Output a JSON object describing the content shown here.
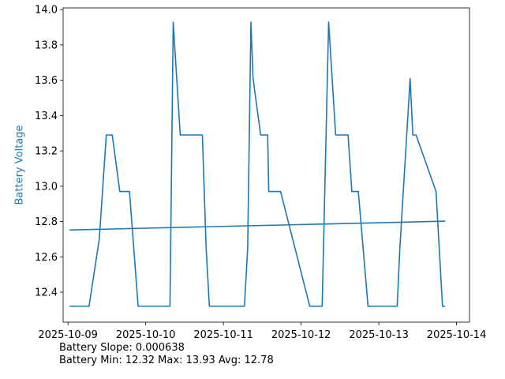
{
  "chart_data": {
    "type": "line",
    "xlabel": "",
    "ylabel": "Battery Voltage",
    "ylabel_color": "#1f77b4",
    "series_color": "#1f77b4",
    "grid": false,
    "xlim": [
      "2025-10-08T22:30",
      "2025-10-14T04:00"
    ],
    "ylim": [
      12.23,
      14.01
    ],
    "x_ticks": [
      {
        "value": "2025-10-09T00:00",
        "label": "2025-10-09"
      },
      {
        "value": "2025-10-10T00:00",
        "label": "2025-10-10"
      },
      {
        "value": "2025-10-11T00:00",
        "label": "2025-10-11"
      },
      {
        "value": "2025-10-12T00:00",
        "label": "2025-10-12"
      },
      {
        "value": "2025-10-13T00:00",
        "label": "2025-10-13"
      },
      {
        "value": "2025-10-14T00:00",
        "label": "2025-10-14"
      }
    ],
    "y_ticks": [
      {
        "value": 12.4,
        "label": "12.4"
      },
      {
        "value": 12.6,
        "label": "12.6"
      },
      {
        "value": 12.8,
        "label": "12.8"
      },
      {
        "value": 13.0,
        "label": "13.0"
      },
      {
        "value": 13.2,
        "label": "13.2"
      },
      {
        "value": 13.4,
        "label": "13.4"
      },
      {
        "value": 13.6,
        "label": "13.6"
      },
      {
        "value": 13.8,
        "label": "13.8"
      },
      {
        "value": 14.0,
        "label": "14.0"
      }
    ],
    "series": [
      {
        "x": [
          "2025-10-09T00:30",
          "2025-10-09T06:30",
          "2025-10-09T09:40",
          "2025-10-09T11:50",
          "2025-10-09T13:40",
          "2025-10-09T16:00",
          "2025-10-09T19:00",
          "2025-10-09T21:40",
          "2025-10-10T07:30",
          "2025-10-10T08:30",
          "2025-10-10T10:40",
          "2025-10-10T17:30",
          "2025-10-10T18:40",
          "2025-10-10T19:40",
          "2025-10-11T06:30",
          "2025-10-11T07:30",
          "2025-10-11T08:30",
          "2025-10-11T09:10",
          "2025-10-11T11:30",
          "2025-10-11T13:40",
          "2025-10-11T14:00",
          "2025-10-11T17:40",
          "2025-10-12T02:40",
          "2025-10-12T06:30",
          "2025-10-12T08:30",
          "2025-10-12T10:40",
          "2025-10-12T14:30",
          "2025-10-12T15:40",
          "2025-10-12T17:40",
          "2025-10-12T20:40",
          "2025-10-13T05:40",
          "2025-10-13T06:30",
          "2025-10-13T09:40",
          "2025-10-13T10:30",
          "2025-10-13T11:30",
          "2025-10-13T17:40",
          "2025-10-13T19:40",
          "2025-10-13T20:30"
        ],
        "values": [
          12.32,
          12.32,
          12.7,
          13.29,
          13.29,
          12.97,
          12.97,
          12.32,
          12.32,
          13.93,
          13.29,
          13.29,
          12.65,
          12.32,
          12.32,
          12.65,
          13.93,
          13.61,
          13.29,
          13.29,
          12.97,
          12.97,
          12.32,
          12.32,
          13.93,
          13.29,
          13.29,
          12.97,
          12.97,
          12.32,
          12.32,
          12.65,
          13.61,
          13.29,
          13.29,
          12.97,
          12.32,
          12.32
        ]
      },
      {
        "x": [
          "2025-10-09T00:30",
          "2025-10-13T20:30"
        ],
        "values": [
          12.752,
          12.802
        ]
      }
    ]
  },
  "stats": {
    "slope_line": "Battery Slope: 0.000638",
    "range_line": "Battery Min: 12.32 Max: 13.93 Avg: 12.78"
  }
}
